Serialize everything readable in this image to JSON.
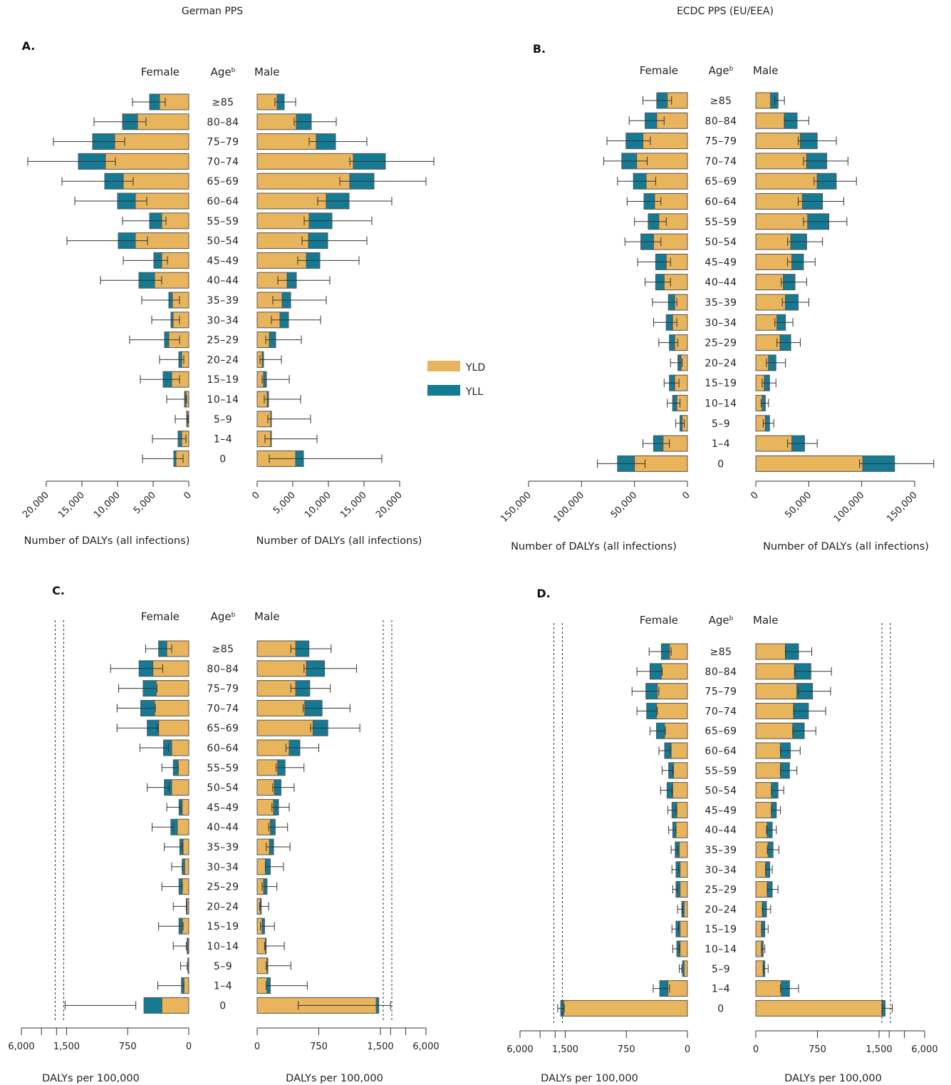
{
  "headers": {
    "left": "German PPS",
    "right": "ECDC PPS (EU/EEA)"
  },
  "column_labels": {
    "female": "Female",
    "age": "Age",
    "age_sup": "b",
    "male": "Male"
  },
  "legend": [
    {
      "label": "YLD",
      "color": "#E8B45C"
    },
    {
      "label": "YLL",
      "color": "#157A94"
    }
  ],
  "colors": {
    "yld": "#E8B45C",
    "yll": "#157A94",
    "outline": "#555555"
  },
  "chart_data": [
    {
      "panel": "A.",
      "type": "bar",
      "orientation": "horizontal-pyramid",
      "metric": "counts",
      "xlabel": "Number of DALYs (all infections)",
      "female_ticks": [
        "20,000",
        "15,000",
        "10,000",
        "5,000",
        "0"
      ],
      "male_ticks": [
        "0",
        "5,000",
        "10,000",
        "15,000",
        "20,000"
      ],
      "xlim": [
        0,
        20000
      ],
      "age_groups": [
        "≥85",
        "80–84",
        "75–79",
        "70–74",
        "65–69",
        "60–64",
        "55–59",
        "50–54",
        "45–49",
        "40–44",
        "35–39",
        "30–34",
        "25–29",
        "20–24",
        "15–19",
        "10–14",
        "5–9",
        "1–4",
        "0"
      ],
      "female_yld": [
        4100,
        7200,
        10400,
        11700,
        9200,
        7500,
        3800,
        7500,
        3800,
        4800,
        2300,
        2200,
        2800,
        1000,
        2400,
        400,
        200,
        1000,
        1800
      ],
      "female_yll": [
        1400,
        2100,
        3100,
        3800,
        2600,
        2500,
        1700,
        2400,
        1100,
        2200,
        500,
        300,
        600,
        400,
        1200,
        200,
        100,
        500,
        300
      ],
      "female_ci": [
        [
          3300,
          7900
        ],
        [
          6000,
          13300
        ],
        [
          9000,
          19000
        ],
        [
          10300,
          22600
        ],
        [
          7800,
          17800
        ],
        [
          5900,
          16000
        ],
        [
          3200,
          9300
        ],
        [
          5800,
          17100
        ],
        [
          3000,
          9200
        ],
        [
          3800,
          12400
        ],
        [
          1300,
          6600
        ],
        [
          1300,
          5200
        ],
        [
          1300,
          8300
        ],
        [
          700,
          4100
        ],
        [
          1300,
          6800
        ],
        [
          300,
          3100
        ],
        [
          100,
          1900
        ],
        [
          400,
          5100
        ],
        [
          800,
          6500
        ]
      ],
      "male_yld": [
        2800,
        5500,
        8300,
        13500,
        13000,
        9700,
        7300,
        7200,
        6900,
        4200,
        3500,
        3200,
        1700,
        700,
        900,
        1400,
        1900,
        1900,
        5400
      ],
      "male_yll": [
        1000,
        2100,
        2700,
        4500,
        3400,
        3200,
        3200,
        2700,
        1900,
        1300,
        1200,
        1200,
        900,
        200,
        400,
        200,
        100,
        100,
        1100
      ],
      "male_ci": [
        [
          2500,
          5400
        ],
        [
          5200,
          11100
        ],
        [
          7300,
          15400
        ],
        [
          13000,
          24800
        ],
        [
          11600,
          23700
        ],
        [
          8500,
          18900
        ],
        [
          6600,
          16100
        ],
        [
          6300,
          15400
        ],
        [
          5700,
          14300
        ],
        [
          2900,
          10200
        ],
        [
          2200,
          9700
        ],
        [
          2000,
          8900
        ],
        [
          1200,
          6200
        ],
        [
          400,
          3400
        ],
        [
          700,
          4500
        ],
        [
          1000,
          6100
        ],
        [
          1500,
          7500
        ],
        [
          1100,
          8400
        ],
        [
          1700,
          17500
        ]
      ]
    },
    {
      "panel": "B.",
      "type": "bar",
      "orientation": "horizontal-pyramid",
      "metric": "counts",
      "xlabel_female": "Number of  DALYs (all infections)",
      "xlabel_male": "Number of DALYs (all infections)",
      "female_ticks": [
        "150,000",
        "100,000",
        "50,000",
        "0"
      ],
      "male_ticks": [
        "0",
        "50,000",
        "100,000",
        "150,000"
      ],
      "xlim": [
        0,
        150000
      ],
      "age_groups": [
        "≥85",
        "80–84",
        "75–79",
        "70–74",
        "65–69",
        "60–64",
        "55–59",
        "50–54",
        "45–49",
        "40–44",
        "35–39",
        "30–34",
        "25–29",
        "20–24",
        "15–19",
        "10–14",
        "5–9",
        "1–4",
        "0"
      ],
      "female_yld": [
        19000,
        29000,
        42000,
        48000,
        39000,
        31000,
        27000,
        32000,
        20000,
        22000,
        12000,
        14000,
        12000,
        6000,
        12000,
        10000,
        5000,
        23000,
        50000
      ],
      "female_yll": [
        10000,
        11000,
        16000,
        14000,
        12000,
        10000,
        10000,
        12000,
        10000,
        8000,
        6000,
        6000,
        5000,
        3000,
        5000,
        4000,
        2000,
        9000,
        16000
      ],
      "female_ci": [
        [
          15000,
          42000
        ],
        [
          22000,
          55000
        ],
        [
          35000,
          76000
        ],
        [
          38000,
          79000
        ],
        [
          30000,
          66000
        ],
        [
          25000,
          57000
        ],
        [
          20000,
          50000
        ],
        [
          25000,
          59000
        ],
        [
          16000,
          47000
        ],
        [
          16000,
          40000
        ],
        [
          10000,
          33000
        ],
        [
          10000,
          32000
        ],
        [
          9000,
          27000
        ],
        [
          5000,
          16000
        ],
        [
          8000,
          22000
        ],
        [
          7000,
          19000
        ],
        [
          3000,
          11000
        ],
        [
          17000,
          42000
        ],
        [
          40000,
          85000
        ]
      ],
      "male_yld": [
        14000,
        27000,
        42000,
        48000,
        58000,
        44000,
        49000,
        33000,
        34000,
        26000,
        28000,
        20000,
        23000,
        12000,
        8000,
        6000,
        9000,
        34000,
        101000
      ],
      "male_yll": [
        7000,
        12000,
        16000,
        19000,
        18000,
        19000,
        20000,
        15000,
        11000,
        11000,
        12000,
        8000,
        10000,
        7000,
        5000,
        3000,
        4000,
        12000,
        30000
      ],
      "male_ci": [
        [
          18000,
          27000
        ],
        [
          27000,
          50000
        ],
        [
          40000,
          76000
        ],
        [
          45000,
          87000
        ],
        [
          55000,
          95000
        ],
        [
          40000,
          83000
        ],
        [
          45000,
          86000
        ],
        [
          30000,
          63000
        ],
        [
          30000,
          56000
        ],
        [
          24000,
          48000
        ],
        [
          25000,
          50000
        ],
        [
          18000,
          35000
        ],
        [
          20000,
          42000
        ],
        [
          10000,
          28000
        ],
        [
          6000,
          19000
        ],
        [
          5000,
          12000
        ],
        [
          7000,
          17000
        ],
        [
          30000,
          58000
        ],
        [
          98000,
          168000
        ]
      ]
    },
    {
      "panel": "C.",
      "type": "bar",
      "orientation": "horizontal-pyramid",
      "metric": "rate",
      "xlabel": "DALYs per 100,000",
      "female_ticks": [
        "6,000",
        "1,500",
        "750",
        "0"
      ],
      "male_ticks": [
        "0",
        "750",
        "1,500",
        "6,000"
      ],
      "axis_break": "1,500 to 6,000 (compressed scale)",
      "age_groups": [
        "≥85",
        "80–84",
        "75–79",
        "70–74",
        "65–69",
        "60–64",
        "55–59",
        "50–54",
        "45–49",
        "40–44",
        "35–39",
        "30–34",
        "25–29",
        "20–24",
        "15–19",
        "10–14",
        "5–9",
        "1–4",
        "0"
      ],
      "female_yld": [
        270,
        440,
        400,
        420,
        370,
        210,
        130,
        210,
        80,
        140,
        70,
        50,
        80,
        20,
        80,
        10,
        5,
        60,
        330
      ],
      "female_yll": [
        100,
        170,
        160,
        170,
        140,
        100,
        60,
        90,
        40,
        80,
        40,
        30,
        40,
        10,
        40,
        10,
        5,
        30,
        220
      ],
      "female_ci": [
        [
          210,
          530
        ],
        [
          320,
          960
        ],
        [
          390,
          860
        ],
        [
          410,
          880
        ],
        [
          380,
          880
        ],
        [
          250,
          600
        ],
        [
          130,
          330
        ],
        [
          240,
          510
        ],
        [
          100,
          270
        ],
        [
          190,
          450
        ],
        [
          80,
          300
        ],
        [
          80,
          210
        ],
        [
          80,
          330
        ],
        [
          30,
          190
        ],
        [
          70,
          370
        ],
        [
          30,
          190
        ],
        [
          20,
          100
        ],
        [
          60,
          380
        ],
        [
          650,
          1650
        ]
      ],
      "male_yld": [
        470,
        600,
        470,
        580,
        680,
        390,
        250,
        210,
        200,
        160,
        150,
        100,
        80,
        40,
        60,
        100,
        120,
        120,
        1450
      ],
      "male_yll": [
        160,
        220,
        170,
        210,
        180,
        130,
        90,
        80,
        60,
        60,
        50,
        60,
        40,
        10,
        30,
        10,
        10,
        40,
        30
      ],
      "male_ci": [
        [
          410,
          900
        ],
        [
          570,
          1210
        ],
        [
          410,
          890
        ],
        [
          560,
          1130
        ],
        [
          650,
          1250
        ],
        [
          350,
          750
        ],
        [
          230,
          570
        ],
        [
          190,
          450
        ],
        [
          180,
          390
        ],
        [
          140,
          370
        ],
        [
          110,
          400
        ],
        [
          100,
          320
        ],
        [
          60,
          240
        ],
        [
          30,
          140
        ],
        [
          40,
          210
        ],
        [
          90,
          330
        ],
        [
          110,
          410
        ],
        [
          110,
          610
        ],
        [
          500,
          2500
        ]
      ]
    },
    {
      "panel": "D.",
      "type": "bar",
      "orientation": "horizontal-pyramid",
      "metric": "rate",
      "xlabel": "DALYs per 100,000",
      "female_ticks": [
        "6,000",
        "1,500",
        "750",
        "0"
      ],
      "male_ticks": [
        "0",
        "750",
        "1,500",
        "6,000"
      ],
      "axis_break": "1,500 to 6,000 (compressed scale)",
      "age_groups": [
        "≥85",
        "80–84",
        "75–79",
        "70–74",
        "65–69",
        "60–64",
        "55–59",
        "50–54",
        "45–49",
        "40–44",
        "35–39",
        "30–34",
        "25–29",
        "20–24",
        "15–19",
        "10–14",
        "5–9",
        "1–4",
        "0"
      ],
      "female_yld": [
        220,
        320,
        370,
        380,
        280,
        200,
        170,
        180,
        130,
        140,
        100,
        90,
        90,
        40,
        90,
        90,
        40,
        240,
        1650
      ],
      "female_yll": [
        100,
        140,
        140,
        120,
        100,
        80,
        60,
        70,
        60,
        40,
        50,
        50,
        50,
        30,
        50,
        40,
        20,
        100,
        300
      ],
      "female_ci": [
        [
          200,
          470
        ],
        [
          310,
          620
        ],
        [
          350,
          680
        ],
        [
          370,
          620
        ],
        [
          270,
          460
        ],
        [
          210,
          350
        ],
        [
          180,
          310
        ],
        [
          190,
          330
        ],
        [
          140,
          240
        ],
        [
          140,
          230
        ],
        [
          120,
          200
        ],
        [
          110,
          190
        ],
        [
          120,
          180
        ],
        [
          60,
          120
        ],
        [
          110,
          190
        ],
        [
          100,
          180
        ],
        [
          70,
          100
        ],
        [
          220,
          420
        ],
        [
          1600,
          2250
        ]
      ],
      "male_yld": [
        360,
        470,
        500,
        460,
        450,
        300,
        300,
        190,
        190,
        140,
        150,
        120,
        140,
        80,
        70,
        70,
        90,
        310,
        1800
      ],
      "male_yll": [
        160,
        200,
        190,
        180,
        140,
        120,
        110,
        80,
        60,
        60,
        60,
        50,
        60,
        50,
        40,
        20,
        20,
        100,
        300
      ],
      "male_ci": [
        [
          360,
          680
        ],
        [
          480,
          920
        ],
        [
          520,
          910
        ],
        [
          460,
          850
        ],
        [
          450,
          730
        ],
        [
          300,
          540
        ],
        [
          300,
          500
        ],
        [
          190,
          340
        ],
        [
          190,
          300
        ],
        [
          130,
          250
        ],
        [
          140,
          280
        ],
        [
          120,
          200
        ],
        [
          140,
          270
        ],
        [
          80,
          180
        ],
        [
          70,
          150
        ],
        [
          70,
          110
        ],
        [
          90,
          150
        ],
        [
          300,
          520
        ],
        [
          1800,
          2800
        ]
      ]
    }
  ]
}
